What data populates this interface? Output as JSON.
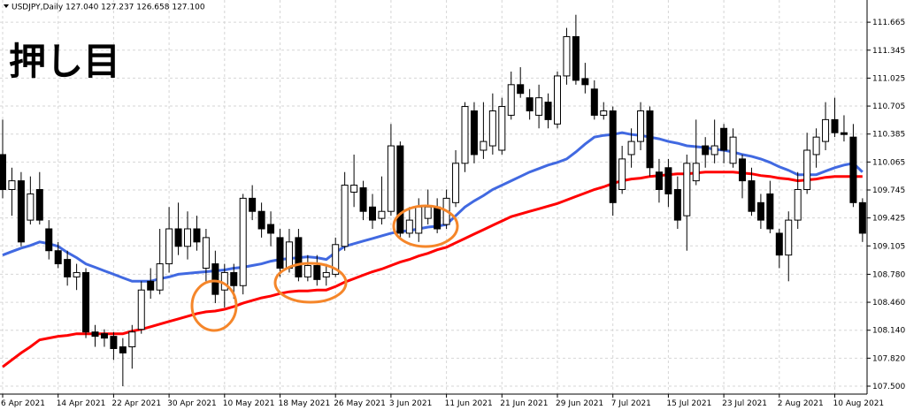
{
  "chart_data": {
    "type": "candlestick",
    "header": "USDJPY,Daily 127.040 127.237 126.658 127.100",
    "annotation": "押し目",
    "up_color": "#ffffff",
    "down_color": "#000000",
    "annotation_color": "#f5862a",
    "grid": true,
    "ylim": [
      107.409,
      111.919
    ],
    "yticks": [
      {
        "value": 107.5,
        "label": "107.500"
      },
      {
        "value": 107.82,
        "label": "107.820"
      },
      {
        "value": 108.14,
        "label": "108.140"
      },
      {
        "value": 108.46,
        "label": "108.460"
      },
      {
        "value": 108.78,
        "label": "108.780"
      },
      109.105,
      109.425,
      109.745,
      110.065,
      110.385,
      110.705,
      111.025,
      111.345,
      111.665
    ],
    "categories": [
      "6 Apr 2021",
      null,
      null,
      null,
      null,
      null,
      "14 Apr 2021",
      null,
      null,
      null,
      null,
      null,
      "22 Apr 2021",
      null,
      null,
      null,
      null,
      null,
      "30 Apr 2021",
      null,
      null,
      null,
      null,
      null,
      "10 May 2021",
      null,
      null,
      null,
      null,
      null,
      "18 May 2021",
      null,
      null,
      null,
      null,
      null,
      "26 May 2021",
      null,
      null,
      null,
      null,
      null,
      "3 Jun 2021",
      null,
      null,
      null,
      null,
      null,
      "11 Jun 2021",
      null,
      null,
      null,
      null,
      null,
      "21 Jun 2021",
      null,
      null,
      null,
      null,
      null,
      "29 Jun 2021",
      null,
      null,
      null,
      null,
      null,
      "7 Jul 2021",
      null,
      null,
      null,
      null,
      null,
      "15 Jul 2021",
      null,
      null,
      null,
      null,
      null,
      "23 Jul 2021",
      null,
      null,
      null,
      null,
      null,
      "2 Aug 2021",
      null,
      null,
      null,
      null,
      null,
      "10 Aug 2021",
      null,
      null,
      null
    ],
    "open": [
      110.15,
      109.75,
      109.85,
      109.4,
      109.75,
      109.3,
      109.05,
      108.95,
      108.75,
      108.8,
      108.12,
      108.1,
      108.07,
      107.95,
      107.95,
      108.15,
      108.7,
      108.6,
      108.9,
      109.3,
      109.1,
      109.3,
      108.85,
      108.9,
      108.6,
      108.8,
      108.65,
      109.65,
      109.5,
      109.35,
      109.2,
      108.85,
      109.2,
      108.75,
      108.88,
      108.75,
      108.78,
      109.1,
      109.72,
      109.77,
      109.55,
      109.42,
      109.5,
      110.25,
      109.25,
      109.25,
      109.42,
      109.55,
      109.35,
      109.6,
      110.05,
      110.65,
      110.2,
      110.25,
      110.2,
      110.6,
      110.95,
      110.8,
      110.6,
      110.75,
      110.5,
      111.05,
      111.5,
      111.02,
      110.9,
      110.6,
      110.65,
      109.75,
      110.15,
      110.3,
      110.65,
      109.95,
      110.0,
      109.75,
      109.45,
      109.85,
      110.25,
      110.15,
      110.45,
      110.05,
      110.1,
      109.85,
      109.6,
      109.7,
      109.25,
      109.0,
      109.4,
      109.75,
      110.15,
      110.3,
      110.55,
      110.4,
      110.35,
      109.6
    ],
    "high": [
      110.55,
      110.0,
      109.95,
      109.9,
      109.95,
      109.4,
      109.15,
      109.05,
      108.9,
      108.85,
      108.2,
      108.15,
      108.12,
      108.05,
      108.2,
      108.7,
      108.85,
      109.3,
      109.55,
      109.6,
      109.5,
      109.45,
      109.3,
      109.05,
      108.9,
      108.9,
      109.7,
      109.8,
      109.6,
      109.5,
      109.3,
      109.3,
      109.3,
      109.0,
      109.0,
      108.9,
      109.2,
      109.95,
      110.15,
      109.85,
      109.7,
      109.9,
      110.5,
      110.3,
      109.55,
      109.65,
      109.75,
      109.65,
      109.75,
      110.2,
      110.75,
      110.75,
      110.75,
      110.85,
      110.8,
      111.1,
      111.15,
      110.9,
      110.95,
      110.85,
      111.1,
      111.6,
      111.75,
      111.2,
      111.0,
      110.75,
      110.7,
      110.25,
      110.45,
      110.75,
      110.7,
      110.1,
      110.1,
      109.9,
      110.15,
      110.55,
      110.35,
      110.55,
      110.5,
      110.45,
      110.15,
      110.0,
      109.7,
      109.85,
      109.3,
      109.5,
      109.95,
      110.4,
      110.45,
      110.75,
      110.8,
      110.6,
      110.5,
      109.65
    ],
    "low": [
      109.65,
      109.45,
      109.1,
      109.35,
      109.35,
      108.95,
      108.85,
      108.65,
      108.6,
      108.05,
      107.95,
      107.95,
      107.8,
      107.5,
      107.7,
      108.1,
      108.5,
      108.55,
      108.8,
      109.0,
      108.95,
      109.05,
      108.7,
      108.45,
      108.4,
      108.5,
      108.55,
      109.4,
      109.2,
      109.1,
      108.75,
      108.8,
      108.7,
      108.7,
      108.65,
      108.65,
      108.75,
      109.05,
      109.55,
      109.4,
      109.3,
      109.35,
      109.45,
      109.2,
      109.2,
      109.15,
      109.35,
      109.25,
      109.3,
      109.55,
      109.95,
      110.05,
      110.1,
      110.15,
      110.15,
      110.55,
      110.8,
      110.55,
      110.45,
      110.45,
      110.45,
      110.95,
      110.95,
      110.85,
      110.55,
      110.55,
      109.45,
      109.7,
      110.0,
      110.2,
      109.9,
      109.6,
      109.55,
      109.3,
      109.05,
      109.8,
      110.0,
      110.05,
      110.05,
      110.0,
      109.65,
      109.45,
      109.3,
      109.25,
      108.85,
      108.7,
      109.3,
      109.7,
      110.0,
      110.2,
      110.35,
      110.3,
      109.55,
      109.15
    ],
    "close": [
      109.75,
      109.85,
      109.15,
      109.7,
      109.4,
      109.05,
      108.9,
      108.75,
      108.8,
      108.12,
      108.07,
      108.05,
      107.93,
      107.88,
      108.12,
      108.6,
      108.6,
      108.9,
      109.3,
      109.1,
      109.3,
      109.15,
      109.2,
      108.55,
      108.8,
      108.65,
      109.65,
      109.5,
      109.3,
      109.25,
      108.85,
      109.15,
      108.75,
      108.88,
      108.72,
      108.8,
      109.12,
      109.8,
      109.8,
      109.5,
      109.4,
      109.5,
      110.25,
      109.25,
      109.4,
      109.55,
      109.55,
      109.3,
      109.65,
      110.05,
      110.7,
      110.15,
      110.3,
      110.65,
      110.7,
      110.95,
      110.85,
      110.65,
      110.8,
      110.55,
      111.05,
      111.5,
      111.0,
      110.95,
      110.6,
      110.65,
      109.6,
      110.1,
      110.3,
      110.65,
      110.0,
      109.75,
      109.7,
      109.4,
      110.05,
      110.05,
      110.15,
      110.25,
      110.2,
      110.35,
      109.85,
      109.5,
      109.4,
      109.3,
      109.0,
      109.4,
      109.75,
      110.2,
      110.35,
      110.55,
      110.4,
      110.38,
      109.6,
      109.25
    ],
    "moving_averages": [
      {
        "color": "#4169e1",
        "values": [
          109.0,
          109.04,
          109.08,
          109.11,
          109.15,
          109.13,
          109.1,
          109.03,
          108.97,
          108.9,
          108.86,
          108.82,
          108.78,
          108.74,
          108.7,
          108.7,
          108.7,
          108.73,
          108.75,
          108.78,
          108.79,
          108.8,
          108.81,
          108.82,
          108.83,
          108.85,
          108.86,
          108.88,
          108.9,
          108.93,
          108.95,
          108.96,
          108.97,
          108.98,
          108.97,
          108.95,
          109.03,
          109.1,
          109.13,
          109.16,
          109.19,
          109.22,
          109.25,
          109.27,
          109.28,
          109.3,
          109.32,
          109.33,
          109.35,
          109.45,
          109.55,
          109.62,
          109.68,
          109.75,
          109.8,
          109.85,
          109.9,
          109.95,
          109.99,
          110.03,
          110.06,
          110.1,
          110.18,
          110.27,
          110.35,
          110.37,
          110.38,
          110.4,
          110.38,
          110.37,
          110.35,
          110.33,
          110.3,
          110.28,
          110.25,
          110.24,
          110.23,
          110.21,
          110.2,
          110.18,
          110.15,
          110.13,
          110.1,
          110.06,
          110.01,
          109.97,
          109.92,
          109.92,
          109.92,
          109.96,
          110.0,
          110.03,
          110.05,
          109.95
        ]
      },
      {
        "color": "#ff0000",
        "values": [
          107.72,
          107.8,
          107.88,
          107.95,
          108.03,
          108.05,
          108.07,
          108.08,
          108.1,
          108.1,
          108.1,
          108.1,
          108.1,
          108.1,
          108.13,
          108.15,
          108.18,
          108.21,
          108.24,
          108.27,
          108.3,
          108.33,
          108.35,
          108.36,
          108.38,
          108.41,
          108.45,
          108.48,
          108.51,
          108.53,
          108.56,
          108.58,
          108.59,
          108.59,
          108.6,
          108.6,
          108.64,
          108.69,
          108.73,
          108.77,
          108.81,
          108.84,
          108.88,
          108.92,
          108.95,
          108.99,
          109.02,
          109.06,
          109.09,
          109.14,
          109.19,
          109.24,
          109.29,
          109.34,
          109.39,
          109.44,
          109.47,
          109.5,
          109.53,
          109.56,
          109.59,
          109.63,
          109.67,
          109.71,
          109.75,
          109.78,
          109.82,
          109.85,
          109.87,
          109.88,
          109.9,
          109.91,
          109.92,
          109.93,
          109.93,
          109.94,
          109.95,
          109.95,
          109.95,
          109.95,
          109.94,
          109.93,
          109.91,
          109.9,
          109.88,
          109.87,
          109.85,
          109.86,
          109.87,
          109.89,
          109.9,
          109.9,
          109.9,
          109.9
        ]
      }
    ]
  }
}
